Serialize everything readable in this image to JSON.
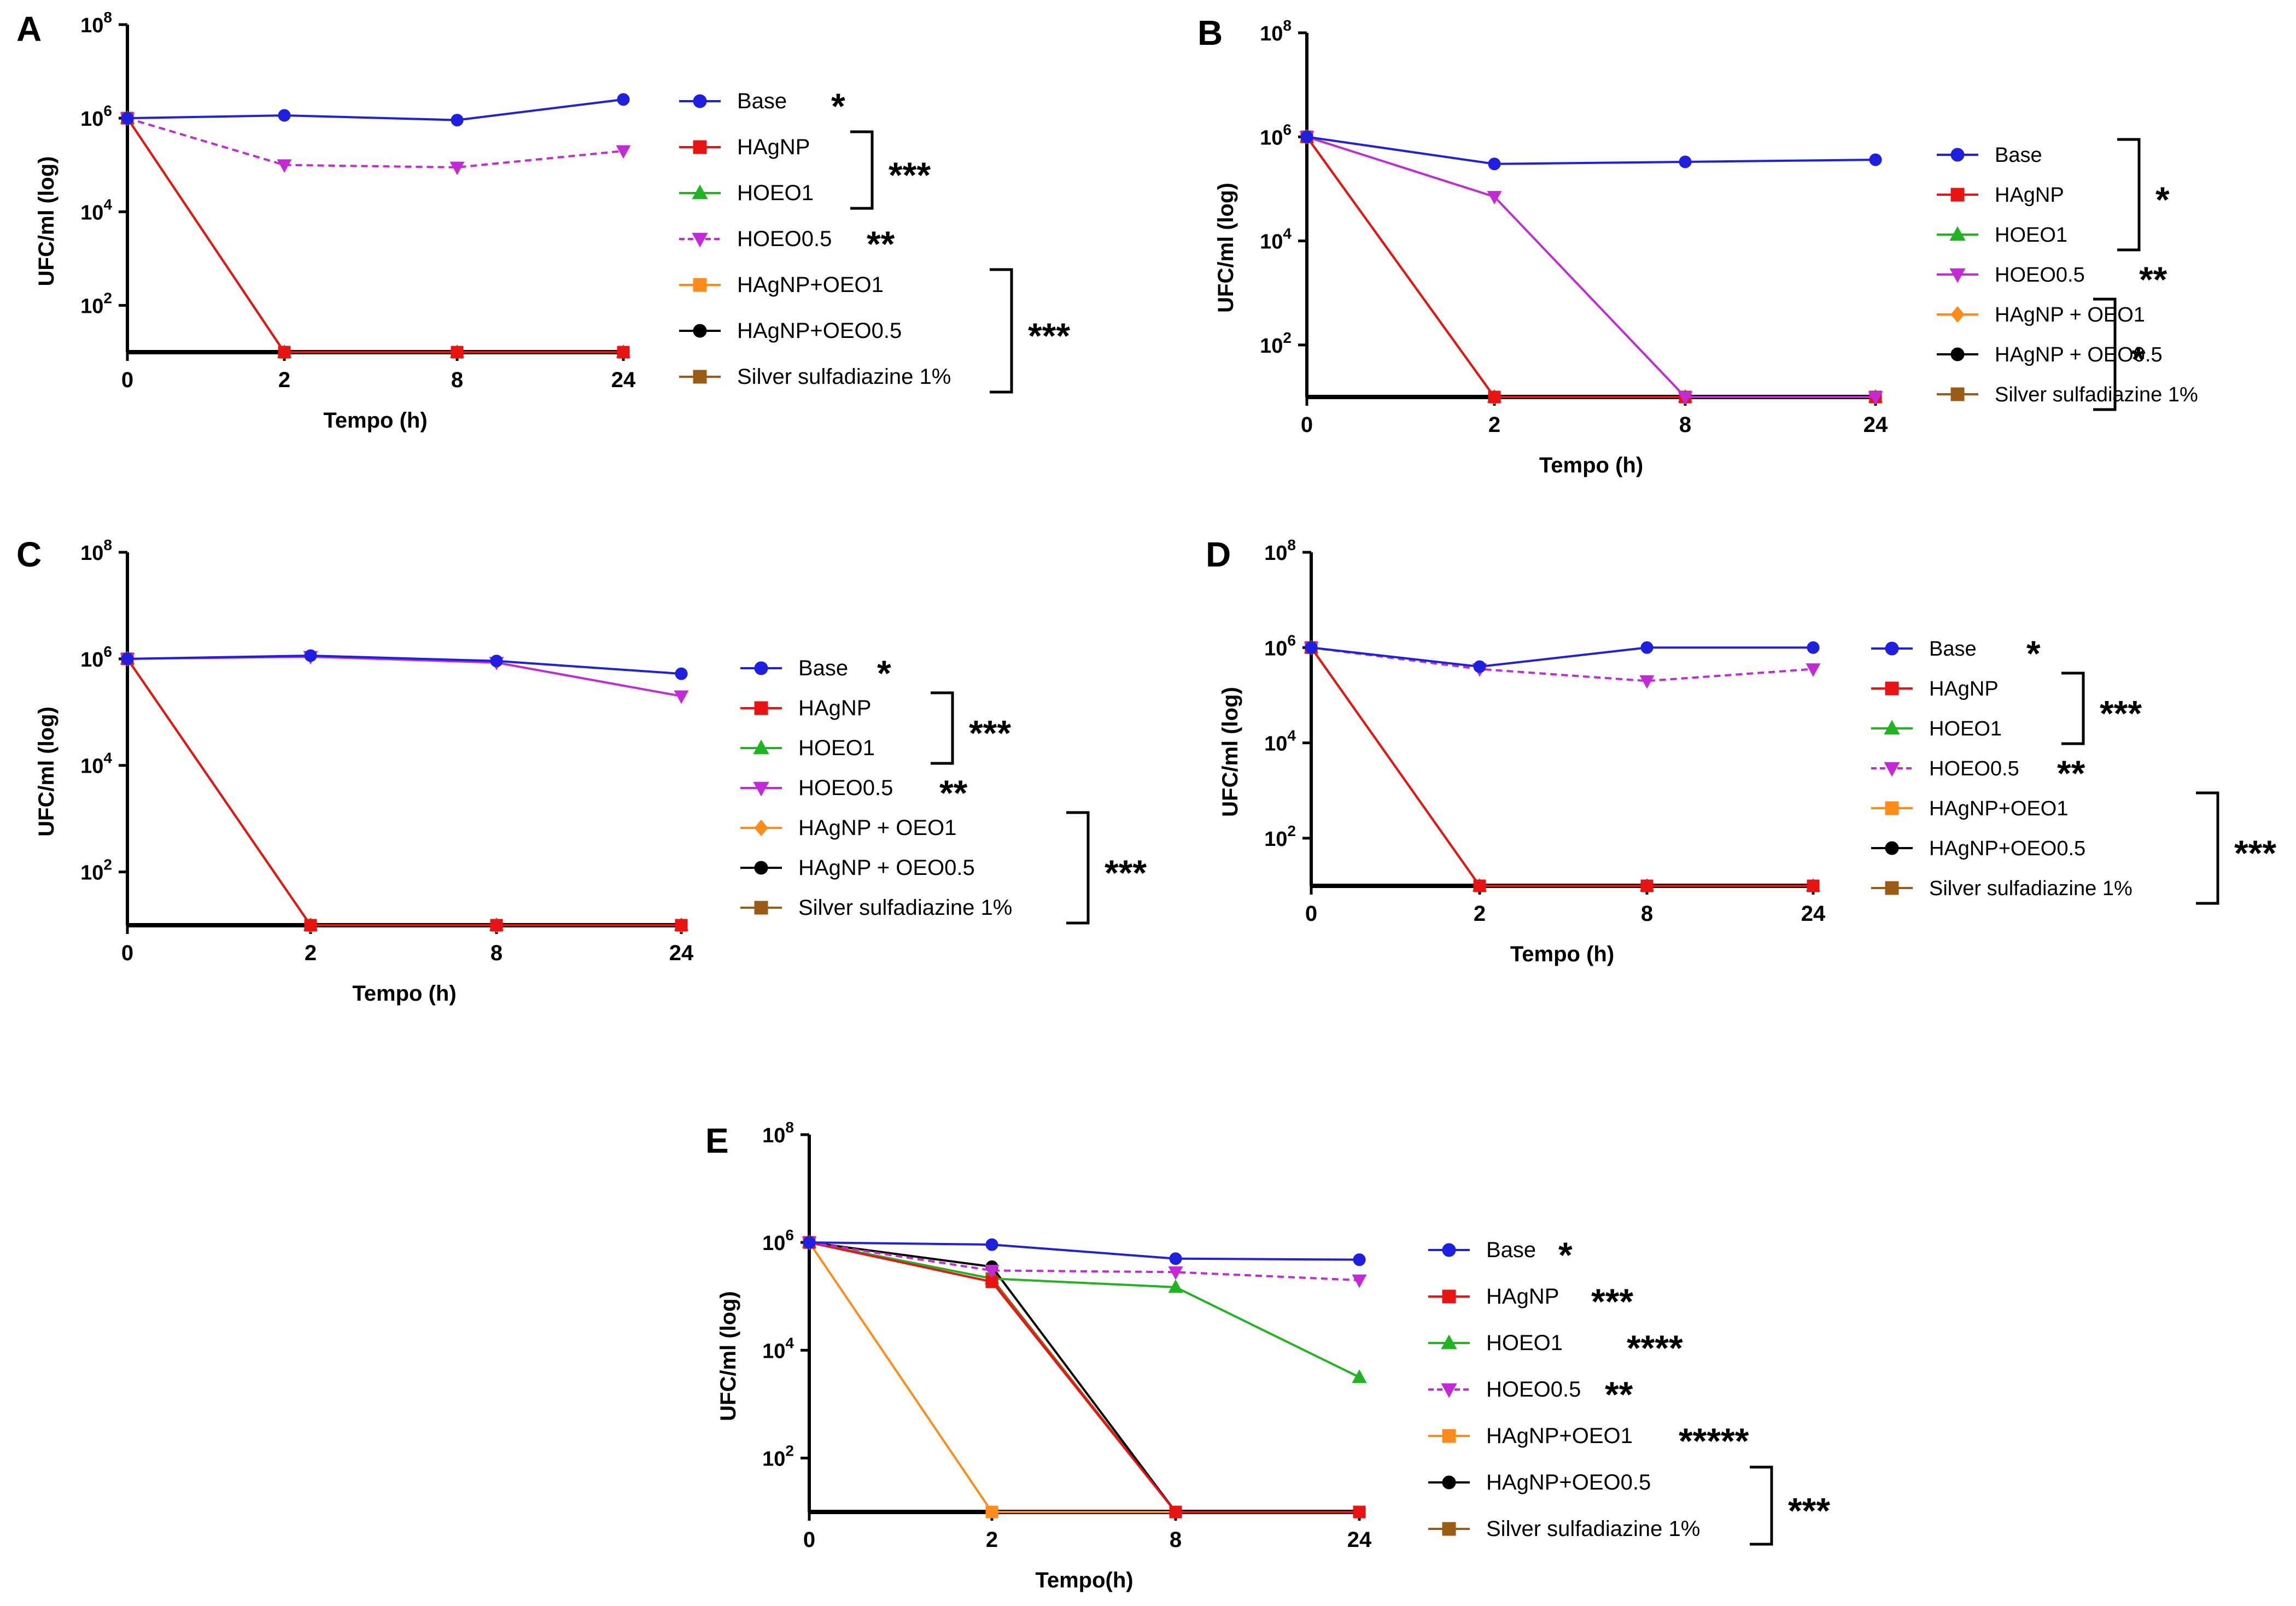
{
  "colors": {
    "Base": "#1f1fe0",
    "HAgNP": "#e81414",
    "HOEO1": "#22b322",
    "HOEO0.5": "#c22ad6",
    "HAgNP+OEO1": "#ff8c1a",
    "HAgNP+OEO0.5": "#000000",
    "Silver sulfadiazine 1%": "#9a5b16",
    "axis": "#000000"
  },
  "chart_data": [
    {
      "panel_label": "A",
      "type": "line",
      "title": "",
      "xlabel": "Tempo (h)",
      "ylabel": "UFC/ml (log)",
      "x_ticks": [
        "0",
        "2",
        "8",
        "24"
      ],
      "y_tick_exponents": [
        2,
        4,
        6,
        8
      ],
      "ylim_log10": [
        1,
        8
      ],
      "y_floor_log10": 1,
      "series": [
        {
          "name": "Base",
          "log10_values": [
            6.0,
            6.06,
            5.96,
            6.4
          ],
          "marker": "circle",
          "dashed": false
        },
        {
          "name": "HAgNP",
          "log10_values": [
            6.0,
            1,
            1,
            1
          ],
          "marker": "square",
          "dashed": false
        },
        {
          "name": "HOEO1",
          "log10_values": [
            6.0,
            1,
            1,
            1
          ],
          "marker": "triangle",
          "dashed": false
        },
        {
          "name": "HOEO0.5",
          "log10_values": [
            6.0,
            5.0,
            4.95,
            5.3
          ],
          "marker": "tri-down",
          "dashed": true
        },
        {
          "name": "HAgNP+OEO1",
          "log10_values": [
            6.0,
            1,
            1,
            1
          ],
          "marker": "square",
          "dashed": false
        },
        {
          "name": "HAgNP+OEO0.5",
          "log10_values": [
            6.0,
            1,
            1,
            1
          ],
          "marker": "circle",
          "dashed": false
        },
        {
          "name": "Silver sulfadiazine 1%",
          "log10_values": [
            6.0,
            1,
            1,
            1
          ],
          "marker": "square",
          "dashed": false
        }
      ],
      "legend_labels": [
        "Base",
        "HAgNP",
        "HOEO1",
        "HOEO0.5",
        "HAgNP+OEO1",
        "HAgNP+OEO0.5",
        "Silver sulfadiazine 1%"
      ],
      "annotations": [
        {
          "text": "*",
          "rows": [
            0
          ]
        },
        {
          "text": "***",
          "rows": [
            1,
            2
          ]
        },
        {
          "text": "**",
          "rows": [
            3
          ]
        },
        {
          "text": "***",
          "rows": [
            4,
            6
          ]
        }
      ]
    },
    {
      "panel_label": "B",
      "type": "line",
      "title": "",
      "xlabel": "Tempo (h)",
      "ylabel": "UFC/ml (log)",
      "x_ticks": [
        "0",
        "2",
        "8",
        "24"
      ],
      "y_tick_exponents": [
        2,
        4,
        6,
        8
      ],
      "ylim_log10": [
        1,
        8
      ],
      "y_floor_log10": 1,
      "series": [
        {
          "name": "Base",
          "log10_values": [
            6.0,
            5.48,
            5.52,
            5.56
          ],
          "marker": "circle",
          "dashed": false
        },
        {
          "name": "HAgNP",
          "log10_values": [
            6.0,
            1,
            1,
            1
          ],
          "marker": "square",
          "dashed": false
        },
        {
          "name": "HOEO1",
          "log10_values": [
            6.0,
            1,
            1,
            1
          ],
          "marker": "triangle",
          "dashed": false
        },
        {
          "name": "HOEO0.5",
          "log10_values": [
            6.0,
            4.85,
            1,
            1
          ],
          "marker": "tri-down",
          "dashed": false
        },
        {
          "name": "HAgNP + OEO1",
          "log10_values": [
            6.0,
            1,
            1,
            1
          ],
          "marker": "diamond",
          "dashed": false
        },
        {
          "name": "HAgNP + OEO0.5",
          "log10_values": [
            6.0,
            1,
            1,
            1
          ],
          "marker": "circle",
          "dashed": false
        },
        {
          "name": "Silver sulfadiazine 1%",
          "log10_values": [
            6.0,
            1,
            1,
            1
          ],
          "marker": "square",
          "dashed": false
        }
      ],
      "legend_labels": [
        "Base",
        "HAgNP",
        "HOEO1",
        "HOEO0.5",
        "HAgNP + OEO1",
        "HAgNP + OEO0.5",
        "Silver sulfadiazine 1%"
      ],
      "annotations": [
        {
          "text": "*",
          "rows": [
            0,
            2
          ]
        },
        {
          "text": "**",
          "rows": [
            3
          ]
        },
        {
          "text": "*",
          "rows": [
            4,
            6
          ]
        }
      ]
    },
    {
      "panel_label": "C",
      "type": "line",
      "title": "",
      "xlabel": "Tempo (h)",
      "ylabel": "UFC/ml (log)",
      "x_ticks": [
        "0",
        "2",
        "8",
        "24"
      ],
      "y_tick_exponents": [
        2,
        4,
        6,
        8
      ],
      "ylim_log10": [
        1,
        8
      ],
      "y_floor_log10": 1,
      "series": [
        {
          "name": "Base",
          "log10_values": [
            6.0,
            6.06,
            5.96,
            5.72
          ],
          "marker": "circle",
          "dashed": false
        },
        {
          "name": "HAgNP",
          "log10_values": [
            6.0,
            1,
            1,
            1
          ],
          "marker": "square",
          "dashed": false
        },
        {
          "name": "HOEO1",
          "log10_values": [
            6.0,
            1,
            1,
            1
          ],
          "marker": "triangle",
          "dashed": false
        },
        {
          "name": "HOEO0.5",
          "log10_values": [
            6.0,
            6.04,
            5.93,
            5.3
          ],
          "marker": "tri-down",
          "dashed": false
        },
        {
          "name": "HAgNP + OEO1",
          "log10_values": [
            6.0,
            1,
            1,
            1
          ],
          "marker": "diamond",
          "dashed": false
        },
        {
          "name": "HAgNP + OEO0.5",
          "log10_values": [
            6.0,
            1,
            1,
            1
          ],
          "marker": "circle",
          "dashed": false
        },
        {
          "name": "Silver sulfadiazine 1%",
          "log10_values": [
            6.0,
            1,
            1,
            1
          ],
          "marker": "square",
          "dashed": false
        }
      ],
      "legend_labels": [
        "Base",
        "HAgNP",
        "HOEO1",
        "HOEO0.5",
        "HAgNP + OEO1",
        "HAgNP + OEO0.5",
        "Silver sulfadiazine 1%"
      ],
      "annotations": [
        {
          "text": "*",
          "rows": [
            0
          ]
        },
        {
          "text": "***",
          "rows": [
            1,
            2
          ]
        },
        {
          "text": "**",
          "rows": [
            3
          ]
        },
        {
          "text": "***",
          "rows": [
            4,
            6
          ]
        }
      ]
    },
    {
      "panel_label": "D",
      "type": "line",
      "title": "",
      "xlabel": "Tempo (h)",
      "ylabel": "UFC/ml (log)",
      "x_ticks": [
        "0",
        "2",
        "8",
        "24"
      ],
      "y_tick_exponents": [
        2,
        4,
        6,
        8
      ],
      "ylim_log10": [
        1,
        8
      ],
      "y_floor_log10": 1,
      "series": [
        {
          "name": "Base",
          "log10_values": [
            6.0,
            5.6,
            6.0,
            6.0
          ],
          "marker": "circle",
          "dashed": false
        },
        {
          "name": "HAgNP",
          "log10_values": [
            6.0,
            1,
            1,
            1
          ],
          "marker": "square",
          "dashed": false
        },
        {
          "name": "HOEO1",
          "log10_values": [
            6.0,
            1,
            1,
            1
          ],
          "marker": "triangle",
          "dashed": false
        },
        {
          "name": "HOEO0.5",
          "log10_values": [
            6.0,
            5.55,
            5.3,
            5.55
          ],
          "marker": "tri-down",
          "dashed": true
        },
        {
          "name": "HAgNP+OEO1",
          "log10_values": [
            6.0,
            1,
            1,
            1
          ],
          "marker": "square",
          "dashed": false
        },
        {
          "name": "HAgNP+OEO0.5",
          "log10_values": [
            6.0,
            1,
            1,
            1
          ],
          "marker": "circle",
          "dashed": false
        },
        {
          "name": "Silver sulfadiazine 1%",
          "log10_values": [
            6.0,
            1,
            1,
            1
          ],
          "marker": "square",
          "dashed": false
        }
      ],
      "legend_labels": [
        "Base",
        "HAgNP",
        "HOEO1",
        "HOEO0.5",
        "HAgNP+OEO1",
        "HAgNP+OEO0.5",
        "Silver sulfadiazine 1%"
      ],
      "annotations": [
        {
          "text": "*",
          "rows": [
            0
          ]
        },
        {
          "text": "***",
          "rows": [
            1,
            2
          ]
        },
        {
          "text": "**",
          "rows": [
            3
          ]
        },
        {
          "text": "***",
          "rows": [
            4,
            6
          ]
        }
      ]
    },
    {
      "panel_label": "E",
      "type": "line",
      "title": "",
      "xlabel": "Tempo(h)",
      "ylabel": "UFC/ml (log)",
      "x_ticks": [
        "0",
        "2",
        "8",
        "24"
      ],
      "y_tick_exponents": [
        2,
        4,
        6,
        8
      ],
      "ylim_log10": [
        1,
        8
      ],
      "y_floor_log10": 1,
      "series": [
        {
          "name": "Base",
          "log10_values": [
            6.0,
            5.96,
            5.7,
            5.68
          ],
          "marker": "circle",
          "dashed": false
        },
        {
          "name": "HAgNP",
          "log10_values": [
            6.0,
            5.27,
            1,
            1
          ],
          "marker": "square",
          "dashed": false
        },
        {
          "name": "HOEO1",
          "log10_values": [
            6.0,
            5.33,
            5.17,
            3.5
          ],
          "marker": "triangle",
          "dashed": false
        },
        {
          "name": "HOEO0.5",
          "log10_values": [
            6.0,
            5.48,
            5.45,
            5.3
          ],
          "marker": "tri-down",
          "dashed": true
        },
        {
          "name": "HAgNP+OEO1",
          "log10_values": [
            6.0,
            1,
            1,
            1
          ],
          "marker": "square",
          "dashed": false
        },
        {
          "name": "HAgNP+OEO0.5",
          "log10_values": [
            6.0,
            5.55,
            1,
            1
          ],
          "marker": "circle",
          "dashed": false
        },
        {
          "name": "Silver sulfadiazine 1%",
          "log10_values": [
            6.0,
            5.33,
            1,
            1
          ],
          "marker": "square",
          "dashed": false
        }
      ],
      "legend_labels": [
        "Base",
        "HAgNP",
        "HOEO1",
        "HOEO0.5",
        "HAgNP+OEO1",
        "HAgNP+OEO0.5",
        "Silver sulfadiazine 1%"
      ],
      "annotations": [
        {
          "text": "*",
          "rows": [
            0
          ]
        },
        {
          "text": "***",
          "rows": [
            1
          ]
        },
        {
          "text": "****",
          "rows": [
            2
          ]
        },
        {
          "text": "**",
          "rows": [
            3
          ]
        },
        {
          "text": "*****",
          "rows": [
            4
          ]
        },
        {
          "text": "***",
          "rows": [
            5,
            6
          ]
        }
      ]
    }
  ]
}
